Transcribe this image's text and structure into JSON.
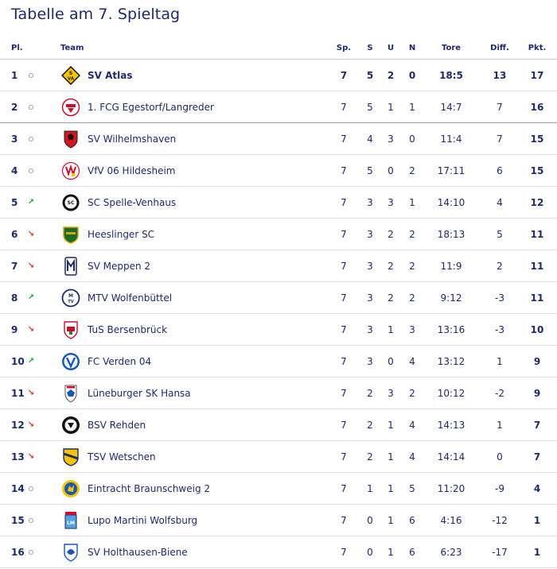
{
  "title": "Tabelle am 7. Spieltag",
  "headers": {
    "pl": "Pl.",
    "team": "Team",
    "sp": "Sp.",
    "s": "S",
    "u": "U",
    "n": "N",
    "tore": "Tore",
    "diff": "Diff.",
    "pkt": "Pkt."
  },
  "colors": {
    "text": "#1c2a6b",
    "trend_up": "#22a03a",
    "trend_down": "#d62d2d",
    "trend_same": "#9aa0ad"
  },
  "rows": [
    {
      "pl": "1",
      "trend": "same",
      "team": "SV Atlas",
      "sp": "7",
      "s": "5",
      "u": "2",
      "n": "0",
      "tore": "18:5",
      "diff": "13",
      "pkt": "17",
      "logo": "sv-atlas-logo"
    },
    {
      "pl": "2",
      "trend": "same",
      "team": "1. FCG Egestorf/Langreder",
      "sp": "7",
      "s": "5",
      "u": "1",
      "n": "1",
      "tore": "14:7",
      "diff": "7",
      "pkt": "16",
      "logo": "fcg-egestorf-logo"
    },
    {
      "pl": "3",
      "trend": "same",
      "team": "SV Wilhelmshaven",
      "sp": "7",
      "s": "4",
      "u": "3",
      "n": "0",
      "tore": "11:4",
      "diff": "7",
      "pkt": "15",
      "logo": "sv-wilhelmshaven-logo"
    },
    {
      "pl": "4",
      "trend": "same",
      "team": "VfV 06 Hildesheim",
      "sp": "7",
      "s": "5",
      "u": "0",
      "n": "2",
      "tore": "17:11",
      "diff": "6",
      "pkt": "15",
      "logo": "vfv-hildesheim-logo"
    },
    {
      "pl": "5",
      "trend": "up",
      "team": "SC Spelle-Venhaus",
      "sp": "7",
      "s": "3",
      "u": "3",
      "n": "1",
      "tore": "14:10",
      "diff": "4",
      "pkt": "12",
      "logo": "sc-spelle-logo"
    },
    {
      "pl": "6",
      "trend": "down",
      "team": "Heeslinger SC",
      "sp": "7",
      "s": "3",
      "u": "2",
      "n": "2",
      "tore": "18:13",
      "diff": "5",
      "pkt": "11",
      "logo": "heeslinger-logo"
    },
    {
      "pl": "7",
      "trend": "down",
      "team": "SV Meppen 2",
      "sp": "7",
      "s": "3",
      "u": "2",
      "n": "2",
      "tore": "11:9",
      "diff": "2",
      "pkt": "11",
      "logo": "sv-meppen-logo"
    },
    {
      "pl": "8",
      "trend": "up",
      "team": "MTV Wolfenbüttel",
      "sp": "7",
      "s": "3",
      "u": "2",
      "n": "2",
      "tore": "9:12",
      "diff": "-3",
      "pkt": "11",
      "logo": "mtv-wolfenbuettel-logo"
    },
    {
      "pl": "9",
      "trend": "down",
      "team": "TuS Bersenbrück",
      "sp": "7",
      "s": "3",
      "u": "1",
      "n": "3",
      "tore": "13:16",
      "diff": "-3",
      "pkt": "10",
      "logo": "tus-bersenbrueck-logo"
    },
    {
      "pl": "10",
      "trend": "up",
      "team": "FC Verden 04",
      "sp": "7",
      "s": "3",
      "u": "0",
      "n": "4",
      "tore": "13:12",
      "diff": "1",
      "pkt": "9",
      "logo": "fc-verden-logo"
    },
    {
      "pl": "11",
      "trend": "down",
      "team": "Lüneburger SK Hansa",
      "sp": "7",
      "s": "2",
      "u": "3",
      "n": "2",
      "tore": "10:12",
      "diff": "-2",
      "pkt": "9",
      "logo": "lueneburger-sk-logo"
    },
    {
      "pl": "12",
      "trend": "down",
      "team": "BSV Rehden",
      "sp": "7",
      "s": "2",
      "u": "1",
      "n": "4",
      "tore": "14:13",
      "diff": "1",
      "pkt": "7",
      "logo": "bsv-rehden-logo"
    },
    {
      "pl": "13",
      "trend": "down",
      "team": "TSV Wetschen",
      "sp": "7",
      "s": "2",
      "u": "1",
      "n": "4",
      "tore": "14:14",
      "diff": "0",
      "pkt": "7",
      "logo": "tsv-wetschen-logo"
    },
    {
      "pl": "14",
      "trend": "same",
      "team": "Eintracht Braunschweig 2",
      "sp": "7",
      "s": "1",
      "u": "1",
      "n": "5",
      "tore": "11:20",
      "diff": "-9",
      "pkt": "4",
      "logo": "eintracht-braunschweig-logo"
    },
    {
      "pl": "15",
      "trend": "same",
      "team": "Lupo Martini Wolfsburg",
      "sp": "7",
      "s": "0",
      "u": "1",
      "n": "6",
      "tore": "4:16",
      "diff": "-12",
      "pkt": "1",
      "logo": "lupo-martini-logo"
    },
    {
      "pl": "16",
      "trend": "same",
      "team": "SV Holthausen-Biene",
      "sp": "7",
      "s": "0",
      "u": "1",
      "n": "6",
      "tore": "6:23",
      "diff": "-17",
      "pkt": "1",
      "logo": "sv-holthausen-logo"
    }
  ]
}
